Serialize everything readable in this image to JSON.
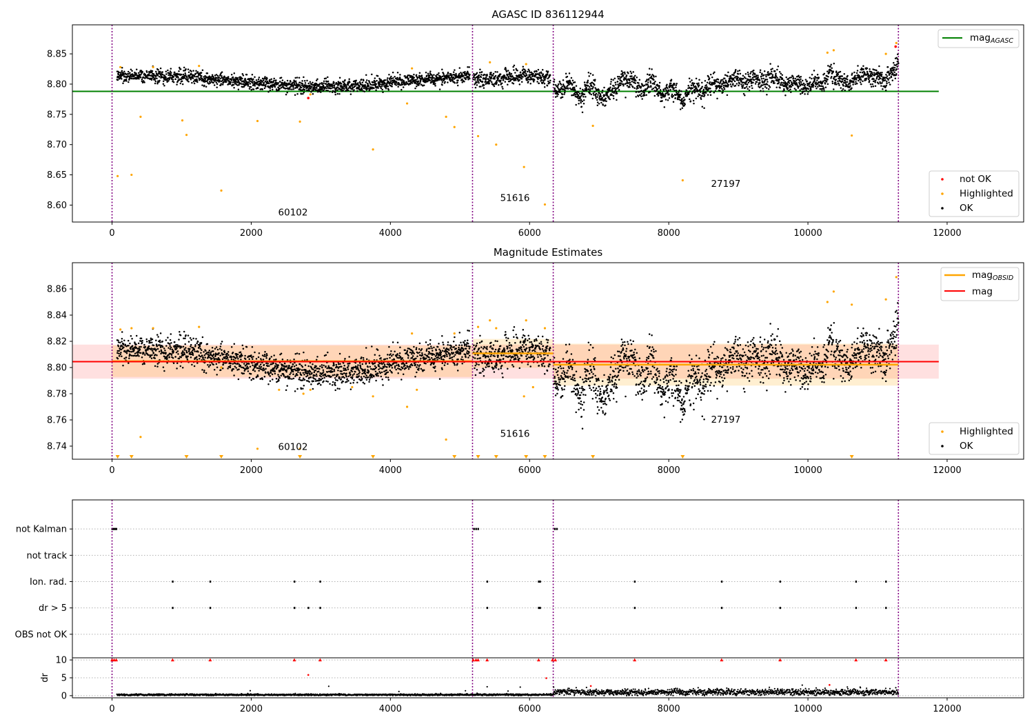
{
  "chart_data": [
    {
      "type": "scatter",
      "title": "AGASC ID 836112944",
      "xlim": [
        -570,
        13100
      ],
      "ylim": [
        8.572,
        8.898
      ],
      "xticks": [
        "0",
        "2000",
        "4000",
        "6000",
        "8000",
        "10000",
        "12000"
      ],
      "xtick_values": [
        0,
        2000,
        4000,
        6000,
        8000,
        10000,
        12000
      ],
      "yticks": [
        "8.60",
        "8.65",
        "8.70",
        "8.75",
        "8.80",
        "8.85"
      ],
      "ytick_values": [
        8.6,
        8.65,
        8.7,
        8.75,
        8.8,
        8.85
      ],
      "obs_boundaries": [
        0,
        5180,
        6340,
        11300
      ],
      "obs_labels": [
        {
          "text": "60102",
          "x": 2600,
          "y": 8.583
        },
        {
          "text": "51616",
          "x": 5790,
          "y": 8.607
        },
        {
          "text": "27197",
          "x": 8820,
          "y": 8.63
        }
      ],
      "hlines": [
        {
          "name": "mag_AGASC",
          "y": 8.788,
          "x": [
            -570,
            11880
          ],
          "color": "#008000"
        }
      ],
      "series": [
        {
          "name": "not OK",
          "color": "#ff0000",
          "x": [
            2820,
            11260
          ],
          "y": [
            8.777,
            8.862
          ]
        },
        {
          "name": "Highlighted",
          "color": "#ffa500",
          "x": [
            80,
            120,
            280,
            410,
            590,
            1010,
            1070,
            1250,
            1570,
            2090,
            2700,
            2850,
            3750,
            4240,
            4310,
            4800,
            4920,
            5260,
            5430,
            5520,
            5950,
            5920,
            6220,
            6910,
            8200,
            10280,
            10370,
            10630,
            11120,
            11270
          ],
          "y": [
            8.648,
            8.828,
            8.65,
            8.746,
            8.828,
            8.74,
            8.716,
            8.83,
            8.624,
            8.739,
            8.738,
            8.783,
            8.692,
            8.768,
            8.826,
            8.746,
            8.729,
            8.714,
            8.836,
            8.7,
            8.833,
            8.663,
            8.601,
            8.731,
            8.641,
            8.852,
            8.856,
            8.715,
            8.85,
            8.868
          ]
        },
        {
          "name": "OK",
          "color": "#000000",
          "x": [],
          "y": []
        }
      ],
      "legend": {
        "lines": [
          "mag_AGASC"
        ],
        "points": [
          "not OK",
          "Highlighted",
          "OK"
        ],
        "line_location": "upper right",
        "points_location": "lower right"
      }
    },
    {
      "type": "scatter",
      "title": "Magnitude Estimates",
      "xlim": [
        -570,
        13100
      ],
      "ylim": [
        8.73,
        8.88
      ],
      "xticks": [
        "0",
        "2000",
        "4000",
        "6000",
        "8000",
        "10000",
        "12000"
      ],
      "xtick_values": [
        0,
        2000,
        4000,
        6000,
        8000,
        10000,
        12000
      ],
      "yticks": [
        "8.74",
        "8.76",
        "8.78",
        "8.80",
        "8.82",
        "8.84",
        "8.86"
      ],
      "ytick_values": [
        8.74,
        8.76,
        8.78,
        8.8,
        8.82,
        8.84,
        8.86
      ],
      "obs_boundaries": [
        0,
        5180,
        6340,
        11300
      ],
      "obs_labels": [
        {
          "text": "60102",
          "x": 2600,
          "y": 8.737
        },
        {
          "text": "51616",
          "x": 5790,
          "y": 8.747
        },
        {
          "text": "27197",
          "x": 8820,
          "y": 8.758
        }
      ],
      "mag": {
        "name": "mag",
        "value": 8.8045,
        "band": [
          8.7915,
          8.8175
        ],
        "x": [
          -570,
          11880
        ],
        "color": "#ff0000"
      },
      "mag_obsid": [
        {
          "x": [
            0,
            5180
          ],
          "value": 8.8048,
          "band": [
            8.7928,
            8.8168
          ]
        },
        {
          "x": [
            5180,
            6340
          ],
          "value": 8.8108,
          "band": [
            8.7998,
            8.8218
          ]
        },
        {
          "x": [
            6340,
            11300
          ],
          "value": 8.8022,
          "band": [
            8.7862,
            8.8182
          ]
        }
      ],
      "series": [
        {
          "name": "Highlighted",
          "color": "#ffa500",
          "x": [
            120,
            280,
            410,
            590,
            1250,
            1570,
            2090,
            2400,
            2700,
            2750,
            2850,
            3450,
            3750,
            4240,
            4310,
            4380,
            4800,
            4920,
            5260,
            5430,
            5520,
            5920,
            5950,
            6050,
            6220,
            10280,
            10370,
            10630,
            11120,
            11270
          ],
          "y": [
            8.829,
            8.83,
            8.747,
            8.83,
            8.831,
            8.8,
            8.738,
            8.783,
            8.738,
            8.78,
            8.783,
            8.785,
            8.778,
            8.77,
            8.826,
            8.783,
            8.745,
            8.826,
            8.831,
            8.836,
            8.83,
            8.778,
            8.836,
            8.785,
            8.83,
            8.85,
            8.858,
            8.848,
            8.852,
            8.869
          ]
        },
        {
          "name": "Highlighted (off-scale)",
          "color": "#ffa500",
          "x": [
            80,
            280,
            1070,
            1570,
            2700,
            3750,
            4920,
            5260,
            5520,
            5950,
            6220,
            6910,
            8200,
            10630
          ]
        },
        {
          "name": "OK",
          "color": "#000000",
          "x": [],
          "y": []
        }
      ],
      "legend": {
        "lines": [
          "mag_OBSID",
          "mag"
        ],
        "points": [
          "Highlighted",
          "OK"
        ],
        "line_location": "upper right",
        "points_location": "lower right"
      }
    },
    {
      "type": "scatter",
      "title": "",
      "xlim": [
        -570,
        13100
      ],
      "xticks": [
        "0",
        "2000",
        "4000",
        "6000",
        "8000",
        "10000",
        "12000"
      ],
      "xtick_values": [
        0,
        2000,
        4000,
        6000,
        8000,
        10000,
        12000
      ],
      "flags": [
        "not Kalman",
        "not track",
        "Ion. rad.",
        "dr > 5",
        "OBS not OK"
      ],
      "flag_points": {
        "not Kalman": [
          0,
          20,
          40,
          60,
          5200,
          5230,
          5260,
          6360,
          6390
        ],
        "not track": [],
        "Ion. rad.": [
          870,
          1410,
          2620,
          2990,
          5390,
          6130,
          6150,
          7510,
          8760,
          9600,
          10690,
          11120
        ],
        "dr > 5": [
          870,
          1410,
          2620,
          2820,
          2990,
          5390,
          6130,
          6150,
          7510,
          8760,
          9600,
          10690,
          11120
        ],
        "OBS not OK": []
      },
      "dr": {
        "ylabel": "dr",
        "yticks": [
          "0",
          "5",
          "10"
        ],
        "ytick_values": [
          0,
          5,
          10
        ],
        "ylim": [
          -0.6,
          10.6
        ],
        "clipped_x": [
          0,
          30,
          60,
          5190,
          5230,
          5260,
          6330,
          6370,
          870,
          1410,
          2620,
          2990,
          5390,
          6130,
          7510,
          8760,
          9600,
          10690,
          11120
        ],
        "red_x": [
          2820,
          6240,
          6880,
          10310
        ],
        "red_y": [
          5.8,
          4.9,
          2.7,
          3.0
        ]
      },
      "obs_boundaries": [
        0,
        5180,
        6340,
        11300
      ]
    }
  ],
  "legend_labels": {
    "mag_agasc_main": "mag",
    "mag_agasc_sub": "AGASC",
    "mag_obsid_main": "mag",
    "mag_obsid_sub": "OBSID",
    "mag": "mag",
    "not_ok": "not OK",
    "highlighted": "Highlighted",
    "ok": "OK"
  },
  "colors": {
    "ok": "#000000",
    "highlighted": "#ffa500",
    "not_ok": "#ff0000",
    "agasc_line": "#008000",
    "mag_line": "#ff0000",
    "obsid_line": "#ffa500",
    "boundary": "#800080"
  }
}
